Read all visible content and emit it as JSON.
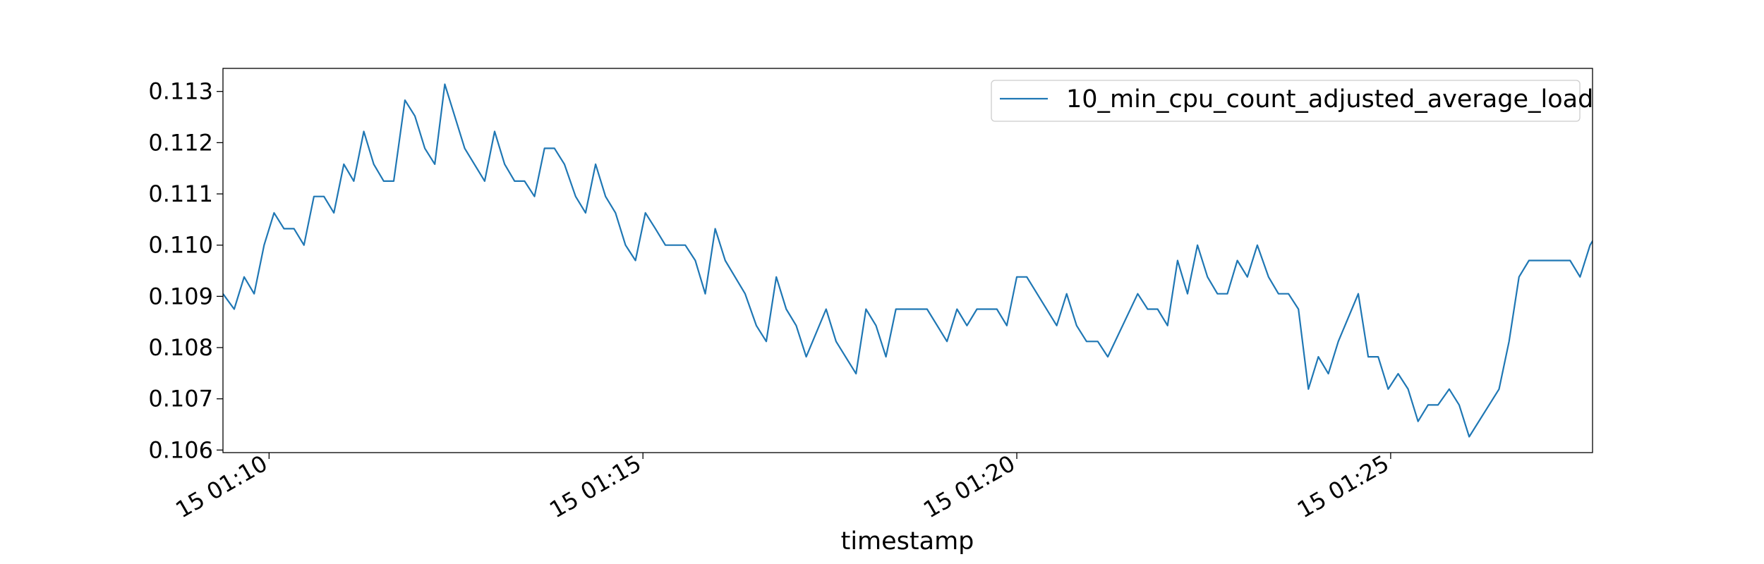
{
  "chart_data": {
    "type": "line",
    "title": "",
    "xlabel": "timestamp",
    "ylabel": "",
    "grid": false,
    "legend_position": "top-right",
    "xlim": [
      "2024-01-15 01:09:23",
      "2024-01-15 01:27:42"
    ],
    "ylim": [
      0.10595,
      0.11345
    ],
    "yticks": [
      0.106,
      0.107,
      0.108,
      0.109,
      0.11,
      0.111,
      0.112,
      0.113
    ],
    "ytick_labels": [
      "0.106",
      "0.107",
      "0.108",
      "0.109",
      "0.110",
      "0.111",
      "0.112",
      "0.113"
    ],
    "xticks": [
      "2024-01-15 01:10:00",
      "2024-01-15 01:15:00",
      "2024-01-15 01:20:00",
      "2024-01-15 01:25:00"
    ],
    "xtick_labels": [
      "15 01:10",
      "15 01:15",
      "15 01:20",
      "15 01:25"
    ],
    "series": [
      {
        "name": "10_min_cpu_count_adjusted_average_load",
        "color": "#1f77b4",
        "x": [
          "2024-01-15 01:09:23",
          "2024-01-15 01:09:32",
          "2024-01-15 01:09:40",
          "2024-01-15 01:09:48",
          "2024-01-15 01:09:56",
          "2024-01-15 01:10:04",
          "2024-01-15 01:10:12",
          "2024-01-15 01:10:20",
          "2024-01-15 01:10:28",
          "2024-01-15 01:10:36",
          "2024-01-15 01:10:44",
          "2024-01-15 01:10:52",
          "2024-01-15 01:11:00",
          "2024-01-15 01:11:08",
          "2024-01-15 01:11:16",
          "2024-01-15 01:11:24",
          "2024-01-15 01:11:32",
          "2024-01-15 01:11:40",
          "2024-01-15 01:11:49",
          "2024-01-15 01:11:57",
          "2024-01-15 01:12:05",
          "2024-01-15 01:12:13",
          "2024-01-15 01:12:21",
          "2024-01-15 01:12:37",
          "2024-01-15 01:12:53",
          "2024-01-15 01:13:01",
          "2024-01-15 01:13:09",
          "2024-01-15 01:13:17",
          "2024-01-15 01:13:25",
          "2024-01-15 01:13:33",
          "2024-01-15 01:13:41",
          "2024-01-15 01:13:49",
          "2024-01-15 01:13:57",
          "2024-01-15 01:14:06",
          "2024-01-15 01:14:14",
          "2024-01-15 01:14:22",
          "2024-01-15 01:14:30",
          "2024-01-15 01:14:38",
          "2024-01-15 01:14:46",
          "2024-01-15 01:14:54",
          "2024-01-15 01:15:02",
          "2024-01-15 01:15:10",
          "2024-01-15 01:15:18",
          "2024-01-15 01:15:26",
          "2024-01-15 01:15:34",
          "2024-01-15 01:15:42",
          "2024-01-15 01:15:50",
          "2024-01-15 01:15:58",
          "2024-01-15 01:16:06",
          "2024-01-15 01:16:22",
          "2024-01-15 01:16:31",
          "2024-01-15 01:16:39",
          "2024-01-15 01:16:47",
          "2024-01-15 01:16:55",
          "2024-01-15 01:17:03",
          "2024-01-15 01:17:11",
          "2024-01-15 01:17:27",
          "2024-01-15 01:17:35",
          "2024-01-15 01:17:51",
          "2024-01-15 01:17:59",
          "2024-01-15 01:18:07",
          "2024-01-15 01:18:15",
          "2024-01-15 01:18:23",
          "2024-01-15 01:18:31",
          "2024-01-15 01:18:48",
          "2024-01-15 01:19:04",
          "2024-01-15 01:19:12",
          "2024-01-15 01:19:20",
          "2024-01-15 01:19:28",
          "2024-01-15 01:19:44",
          "2024-01-15 01:19:52",
          "2024-01-15 01:20:00",
          "2024-01-15 01:20:08",
          "2024-01-15 01:20:32",
          "2024-01-15 01:20:40",
          "2024-01-15 01:20:48",
          "2024-01-15 01:20:56",
          "2024-01-15 01:21:05",
          "2024-01-15 01:21:13",
          "2024-01-15 01:21:37",
          "2024-01-15 01:21:45",
          "2024-01-15 01:21:53",
          "2024-01-15 01:22:01",
          "2024-01-15 01:22:09",
          "2024-01-15 01:22:17",
          "2024-01-15 01:22:25",
          "2024-01-15 01:22:33",
          "2024-01-15 01:22:41",
          "2024-01-15 01:22:49",
          "2024-01-15 01:22:57",
          "2024-01-15 01:23:05",
          "2024-01-15 01:23:13",
          "2024-01-15 01:23:22",
          "2024-01-15 01:23:30",
          "2024-01-15 01:23:38",
          "2024-01-15 01:23:46",
          "2024-01-15 01:23:54",
          "2024-01-15 01:24:02",
          "2024-01-15 01:24:10",
          "2024-01-15 01:24:18",
          "2024-01-15 01:24:34",
          "2024-01-15 01:24:42",
          "2024-01-15 01:24:50",
          "2024-01-15 01:24:58",
          "2024-01-15 01:25:06",
          "2024-01-15 01:25:14",
          "2024-01-15 01:25:22",
          "2024-01-15 01:25:30",
          "2024-01-15 01:25:38",
          "2024-01-15 01:25:47",
          "2024-01-15 01:25:55",
          "2024-01-15 01:26:03",
          "2024-01-15 01:26:27",
          "2024-01-15 01:26:35",
          "2024-01-15 01:26:43",
          "2024-01-15 01:26:51",
          "2024-01-15 01:27:24",
          "2024-01-15 01:27:32",
          "2024-01-15 01:27:40",
          "2024-01-15 01:27:48",
          "2024-01-15 01:27:56",
          "2024-01-15 01:28:04"
        ],
        "y": [
          0.10905,
          0.10875,
          0.10938,
          0.10905,
          0.11,
          0.11063,
          0.11032,
          0.11032,
          0.11,
          0.11095,
          0.11095,
          0.11063,
          0.11158,
          0.11125,
          0.11222,
          0.11158,
          0.11125,
          0.11125,
          0.11283,
          0.11252,
          0.11189,
          0.11158,
          0.11314,
          0.11189,
          0.11125,
          0.11222,
          0.11158,
          0.11125,
          0.11125,
          0.11095,
          0.11189,
          0.11189,
          0.11158,
          0.11095,
          0.11063,
          0.11158,
          0.11095,
          0.11063,
          0.11,
          0.1097,
          0.11063,
          0.11032,
          0.11,
          0.11,
          0.11,
          0.1097,
          0.10905,
          0.11032,
          0.1097,
          0.10905,
          0.10843,
          0.10812,
          0.10938,
          0.10875,
          0.10843,
          0.10782,
          0.10875,
          0.10812,
          0.10749,
          0.10875,
          0.10843,
          0.10782,
          0.10875,
          0.10875,
          0.10875,
          0.10812,
          0.10875,
          0.10843,
          0.10875,
          0.10875,
          0.10843,
          0.10938,
          0.10938,
          0.10843,
          0.10905,
          0.10843,
          0.10812,
          0.10812,
          0.10782,
          0.10905,
          0.10875,
          0.10875,
          0.10843,
          0.1097,
          0.10905,
          0.11,
          0.10938,
          0.10905,
          0.10905,
          0.1097,
          0.10938,
          0.11,
          0.10938,
          0.10905,
          0.10905,
          0.10875,
          0.10719,
          0.10782,
          0.10749,
          0.10812,
          0.10905,
          0.10782,
          0.10782,
          0.10719,
          0.10749,
          0.10719,
          0.10656,
          0.10688,
          0.10688,
          0.10719,
          0.10688,
          0.10626,
          0.10719,
          0.10812,
          0.10938,
          0.1097,
          0.1097,
          0.10938,
          0.11,
          0.11032,
          0.11032,
          0.1097
        ]
      }
    ]
  }
}
